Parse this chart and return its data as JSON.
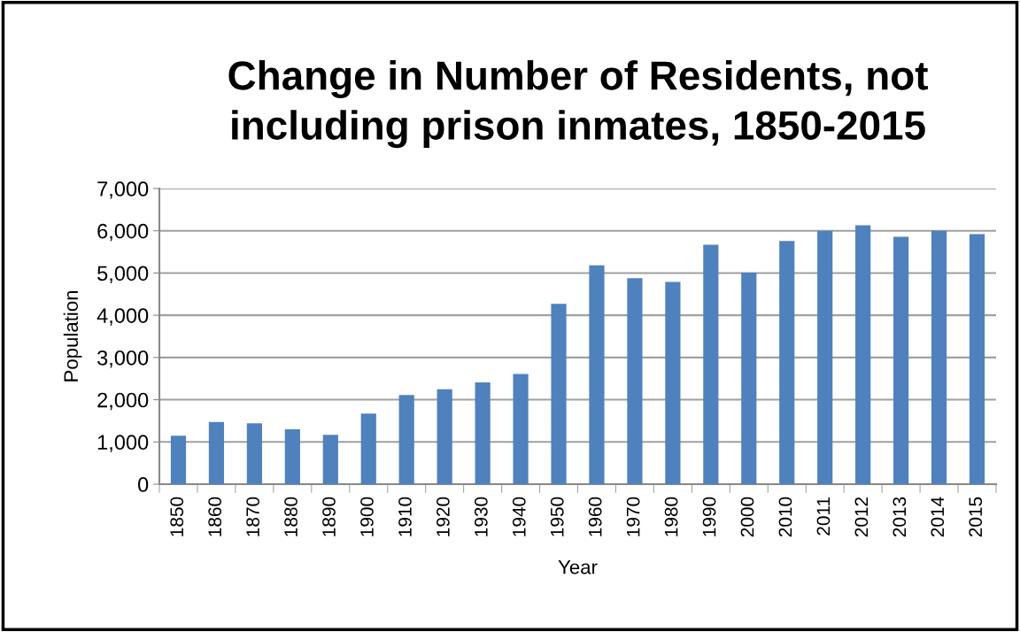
{
  "chart_data": {
    "type": "bar",
    "title": "Change in Number of Residents, not\nincluding prison inmates, 1850-2015",
    "xlabel": "Year",
    "ylabel": "Population",
    "categories": [
      "1850",
      "1860",
      "1870",
      "1880",
      "1890",
      "1900",
      "1910",
      "1920",
      "1930",
      "1940",
      "1950",
      "1960",
      "1970",
      "1980",
      "1990",
      "2000",
      "2010",
      "2011",
      "2012",
      "2013",
      "2014",
      "2015"
    ],
    "values": [
      1150,
      1470,
      1440,
      1300,
      1170,
      1670,
      2110,
      2250,
      2410,
      2610,
      4270,
      5180,
      4880,
      4790,
      5670,
      5010,
      5760,
      6000,
      6130,
      5860,
      6000,
      5920
    ],
    "color": "#4f81bd",
    "ylim": [
      0,
      7000
    ],
    "yticks": [
      {
        "value": 0,
        "label": "0"
      },
      {
        "value": 1000,
        "label": "1,000"
      },
      {
        "value": 2000,
        "label": "2,000"
      },
      {
        "value": 3000,
        "label": "3,000"
      },
      {
        "value": 4000,
        "label": "4,000"
      },
      {
        "value": 5000,
        "label": "5,000"
      },
      {
        "value": 6000,
        "label": "6,000"
      },
      {
        "value": 7000,
        "label": "7,000"
      }
    ],
    "grid": "y",
    "legend": false
  }
}
